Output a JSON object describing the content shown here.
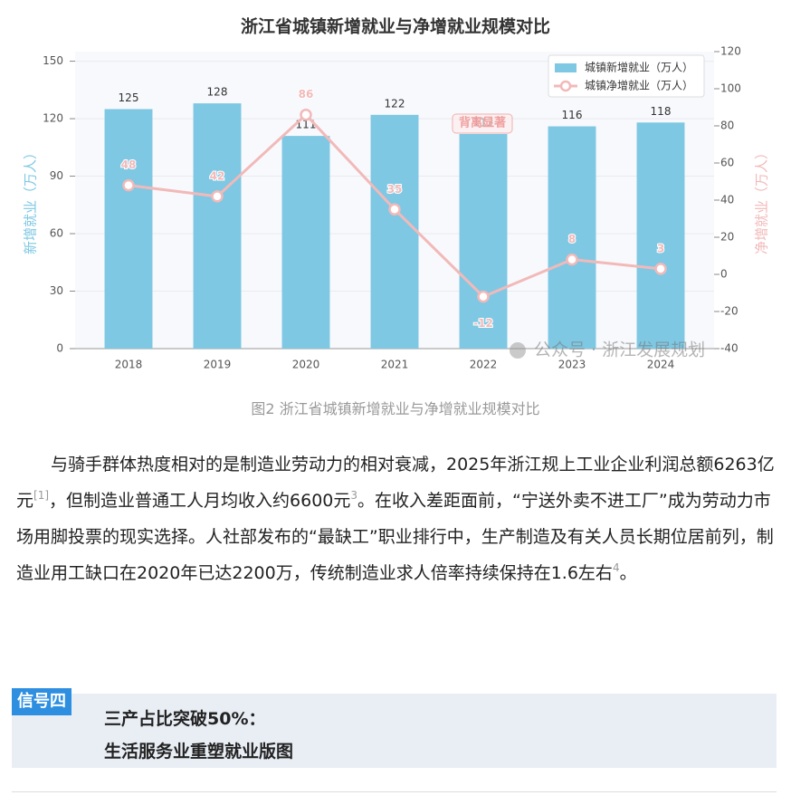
{
  "chart_data": {
    "type": "bar-line",
    "title": "浙江省城镇新增就业与净增就业规模对比",
    "categories": [
      "2018",
      "2019",
      "2020",
      "2021",
      "2022",
      "2023",
      "2024"
    ],
    "series": [
      {
        "name": "城镇新增就业（万人）",
        "type": "bar",
        "color": "#7ec8e3",
        "values": [
          125,
          128,
          111,
          122,
          112,
          116,
          118
        ]
      },
      {
        "name": "城镇净增就业（万人）",
        "type": "line",
        "axis": "y2",
        "color": "#f2b9b9",
        "values": [
          48,
          42,
          86,
          35,
          -12,
          8,
          3
        ]
      }
    ],
    "ylabel": "新增就业（万人）",
    "y2label": "净增就业（万人）",
    "ylim": [
      0,
      155
    ],
    "yticks": [
      0,
      30,
      60,
      90,
      120,
      150
    ],
    "y2lim": [
      -40,
      120
    ],
    "y2ticks": [
      -40,
      -20,
      0,
      20,
      40,
      60,
      80,
      100,
      120
    ],
    "grid": true,
    "legend": "upper right",
    "annotation": "背离显著",
    "watermark": "公众号 · 浙江发展规划"
  },
  "caption": "图2 浙江省城镇新增就业与净增就业规模对比",
  "paragraph": [
    "与骑手群体热度相对的是制造业劳动力的相对衰减，2025年浙江规上工业企业利润总额6263亿元",
    "[1]",
    "，但制造业普通工人月均收入约6600元",
    "3",
    "。在收入差距面前，“宁送外卖不进工厂”成为劳动力市场用脚投票的现实选择。人社部发布的“最缺工”职业排行中，生产制造及有关人员长期位居前列，制造业用工缺口在2020年已达2200万，传统制造业求人倍率持续保持在1.6左右",
    "4",
    "。"
  ],
  "section": {
    "tag": "信号四",
    "title": [
      "三产占比突破50%：",
      "生活服务业重塑就业版图"
    ]
  }
}
